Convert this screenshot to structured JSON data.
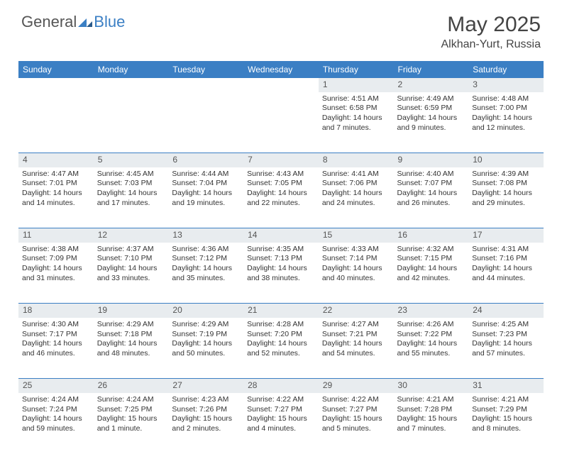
{
  "brand": {
    "part1": "General",
    "part2": "Blue"
  },
  "title": "May 2025",
  "location": "Alkhan-Yurt, Russia",
  "colors": {
    "header_bg": "#3b7fc4",
    "header_text": "#ffffff",
    "daynum_bg": "#e8ecef",
    "row_divider": "#3b7fc4",
    "body_text": "#333333",
    "brand_gray": "#555555",
    "brand_blue": "#3b7fc4"
  },
  "weekdays": [
    "Sunday",
    "Monday",
    "Tuesday",
    "Wednesday",
    "Thursday",
    "Friday",
    "Saturday"
  ],
  "weeks": [
    {
      "nums": [
        "",
        "",
        "",
        "",
        "1",
        "2",
        "3"
      ],
      "cells": [
        null,
        null,
        null,
        null,
        {
          "sunrise": "4:51 AM",
          "sunset": "6:58 PM",
          "daylight": "14 hours and 7 minutes."
        },
        {
          "sunrise": "4:49 AM",
          "sunset": "6:59 PM",
          "daylight": "14 hours and 9 minutes."
        },
        {
          "sunrise": "4:48 AM",
          "sunset": "7:00 PM",
          "daylight": "14 hours and 12 minutes."
        }
      ]
    },
    {
      "nums": [
        "4",
        "5",
        "6",
        "7",
        "8",
        "9",
        "10"
      ],
      "cells": [
        {
          "sunrise": "4:47 AM",
          "sunset": "7:01 PM",
          "daylight": "14 hours and 14 minutes."
        },
        {
          "sunrise": "4:45 AM",
          "sunset": "7:03 PM",
          "daylight": "14 hours and 17 minutes."
        },
        {
          "sunrise": "4:44 AM",
          "sunset": "7:04 PM",
          "daylight": "14 hours and 19 minutes."
        },
        {
          "sunrise": "4:43 AM",
          "sunset": "7:05 PM",
          "daylight": "14 hours and 22 minutes."
        },
        {
          "sunrise": "4:41 AM",
          "sunset": "7:06 PM",
          "daylight": "14 hours and 24 minutes."
        },
        {
          "sunrise": "4:40 AM",
          "sunset": "7:07 PM",
          "daylight": "14 hours and 26 minutes."
        },
        {
          "sunrise": "4:39 AM",
          "sunset": "7:08 PM",
          "daylight": "14 hours and 29 minutes."
        }
      ]
    },
    {
      "nums": [
        "11",
        "12",
        "13",
        "14",
        "15",
        "16",
        "17"
      ],
      "cells": [
        {
          "sunrise": "4:38 AM",
          "sunset": "7:09 PM",
          "daylight": "14 hours and 31 minutes."
        },
        {
          "sunrise": "4:37 AM",
          "sunset": "7:10 PM",
          "daylight": "14 hours and 33 minutes."
        },
        {
          "sunrise": "4:36 AM",
          "sunset": "7:12 PM",
          "daylight": "14 hours and 35 minutes."
        },
        {
          "sunrise": "4:35 AM",
          "sunset": "7:13 PM",
          "daylight": "14 hours and 38 minutes."
        },
        {
          "sunrise": "4:33 AM",
          "sunset": "7:14 PM",
          "daylight": "14 hours and 40 minutes."
        },
        {
          "sunrise": "4:32 AM",
          "sunset": "7:15 PM",
          "daylight": "14 hours and 42 minutes."
        },
        {
          "sunrise": "4:31 AM",
          "sunset": "7:16 PM",
          "daylight": "14 hours and 44 minutes."
        }
      ]
    },
    {
      "nums": [
        "18",
        "19",
        "20",
        "21",
        "22",
        "23",
        "24"
      ],
      "cells": [
        {
          "sunrise": "4:30 AM",
          "sunset": "7:17 PM",
          "daylight": "14 hours and 46 minutes."
        },
        {
          "sunrise": "4:29 AM",
          "sunset": "7:18 PM",
          "daylight": "14 hours and 48 minutes."
        },
        {
          "sunrise": "4:29 AM",
          "sunset": "7:19 PM",
          "daylight": "14 hours and 50 minutes."
        },
        {
          "sunrise": "4:28 AM",
          "sunset": "7:20 PM",
          "daylight": "14 hours and 52 minutes."
        },
        {
          "sunrise": "4:27 AM",
          "sunset": "7:21 PM",
          "daylight": "14 hours and 54 minutes."
        },
        {
          "sunrise": "4:26 AM",
          "sunset": "7:22 PM",
          "daylight": "14 hours and 55 minutes."
        },
        {
          "sunrise": "4:25 AM",
          "sunset": "7:23 PM",
          "daylight": "14 hours and 57 minutes."
        }
      ]
    },
    {
      "nums": [
        "25",
        "26",
        "27",
        "28",
        "29",
        "30",
        "31"
      ],
      "cells": [
        {
          "sunrise": "4:24 AM",
          "sunset": "7:24 PM",
          "daylight": "14 hours and 59 minutes."
        },
        {
          "sunrise": "4:24 AM",
          "sunset": "7:25 PM",
          "daylight": "15 hours and 1 minute."
        },
        {
          "sunrise": "4:23 AM",
          "sunset": "7:26 PM",
          "daylight": "15 hours and 2 minutes."
        },
        {
          "sunrise": "4:22 AM",
          "sunset": "7:27 PM",
          "daylight": "15 hours and 4 minutes."
        },
        {
          "sunrise": "4:22 AM",
          "sunset": "7:27 PM",
          "daylight": "15 hours and 5 minutes."
        },
        {
          "sunrise": "4:21 AM",
          "sunset": "7:28 PM",
          "daylight": "15 hours and 7 minutes."
        },
        {
          "sunrise": "4:21 AM",
          "sunset": "7:29 PM",
          "daylight": "15 hours and 8 minutes."
        }
      ]
    }
  ],
  "labels": {
    "sunrise": "Sunrise: ",
    "sunset": "Sunset: ",
    "daylight": "Daylight: "
  }
}
